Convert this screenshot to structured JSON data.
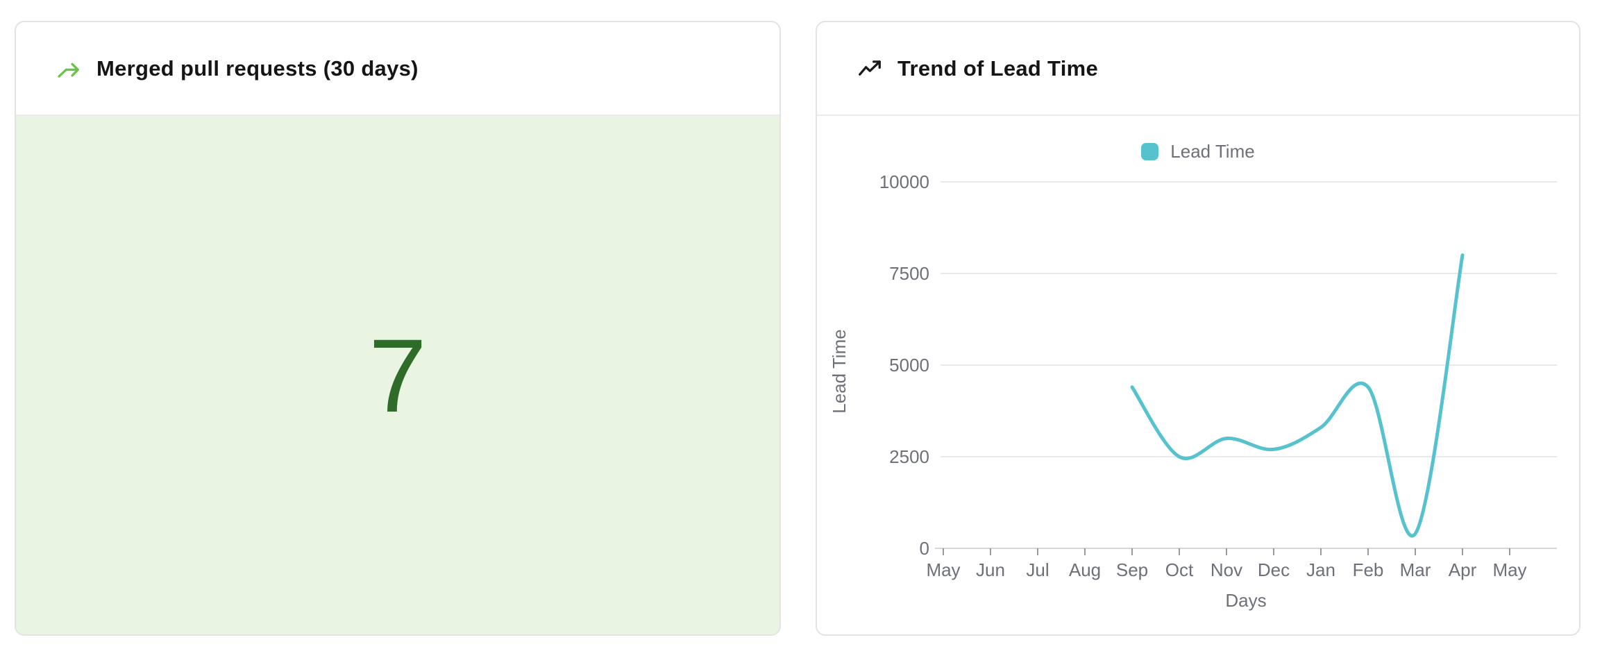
{
  "cards": {
    "merged_pr": {
      "title": "Merged pull requests (30 days)",
      "icon": "git-merge-arrow-icon",
      "icon_color": "#6cc24a",
      "value": "7",
      "value_color": "#2f6c29",
      "content_bg": "#e9f4e3"
    },
    "lead_time": {
      "title": "Trend of Lead Time",
      "icon": "trending-up-icon",
      "icon_color": "#1a1a1a"
    }
  },
  "chart_data": {
    "type": "line",
    "title": "Trend of Lead Time",
    "categories": [
      "May",
      "Jun",
      "Jul",
      "Aug",
      "Sep",
      "Oct",
      "Nov",
      "Dec",
      "Jan",
      "Feb",
      "Mar",
      "Apr",
      "May"
    ],
    "series": [
      {
        "name": "Lead Time",
        "color": "#56c2ce",
        "values": [
          null,
          null,
          null,
          null,
          4400,
          2500,
          3000,
          2700,
          3300,
          4400,
          400,
          8000,
          null
        ]
      }
    ],
    "xlabel": "Days",
    "ylabel": "Lead Time",
    "ylim": [
      0,
      10000
    ],
    "yticks": [
      0,
      2500,
      5000,
      7500,
      10000
    ],
    "smooth": true,
    "grid": true,
    "legend_position": "top",
    "axis_colors": {
      "grid_line": "#e9e9e9",
      "axis_line": "#d6d6d6",
      "tick_mark": "#9a9a9a",
      "label_text": "#6e7079"
    }
  }
}
